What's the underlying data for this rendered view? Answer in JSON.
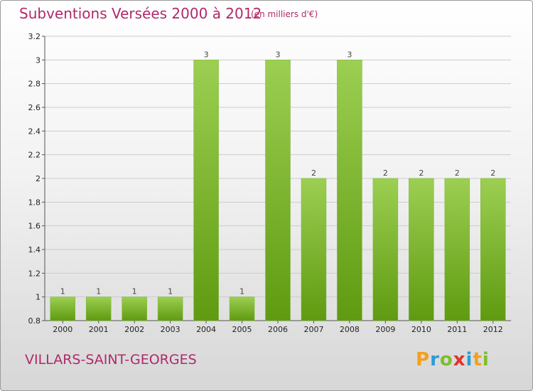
{
  "header": {
    "title": "Subventions Versées 2000 à 2012",
    "unit": "(en milliers d'€)"
  },
  "footer": {
    "commune": "VILLARS-SAINT-GEORGES",
    "logo_letters": [
      "P",
      "r",
      "o",
      "x",
      "i",
      "t",
      "i"
    ]
  },
  "colors": {
    "title": "#b0296a",
    "bar_light": "#9ccf52",
    "bar_dark": "#5f9a10",
    "grid": "#cccccc",
    "axis": "#555555"
  },
  "chart_data": {
    "type": "bar",
    "title": "Subventions Versées 2000 à 2012",
    "subtitle": "(en milliers d'€)",
    "categories": [
      "2000",
      "2001",
      "2002",
      "2003",
      "2004",
      "2005",
      "2006",
      "2007",
      "2008",
      "2009",
      "2010",
      "2011",
      "2012"
    ],
    "values": [
      1,
      1,
      1,
      1,
      3,
      1,
      3,
      2,
      3,
      2,
      2,
      2,
      2
    ],
    "data_labels": [
      "1",
      "1",
      "1",
      "1",
      "3",
      "1",
      "3",
      "2",
      "3",
      "2",
      "2",
      "2",
      "2"
    ],
    "y_ticks": [
      "0.8",
      "1",
      "1.2",
      "1.4",
      "1.6",
      "1.8",
      "2",
      "2.2",
      "2.4",
      "2.6",
      "2.8",
      "3",
      "3.2"
    ],
    "ylim": [
      0.8,
      3.2
    ],
    "grid": true,
    "xlabel": "",
    "ylabel": ""
  }
}
